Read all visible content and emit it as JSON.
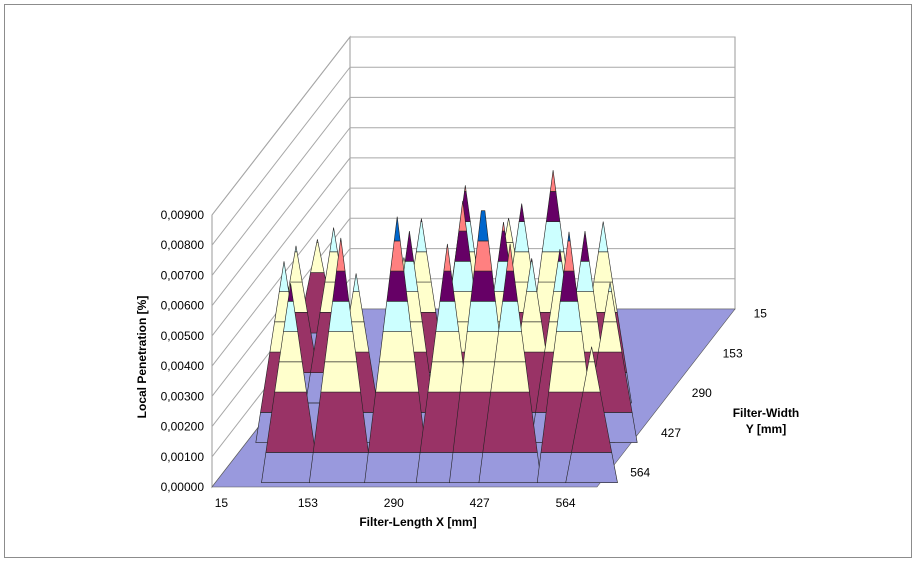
{
  "chart_data": {
    "type": "surface",
    "zlabel": "Local Penetration [%]",
    "xlabel": "Filter-Length X [mm]",
    "ylabel_line1": "Filter-Width",
    "ylabel_line2": "Y [mm]",
    "zlim": [
      0,
      0.009
    ],
    "z_ticks": [
      "0,00000",
      "0,00100",
      "0,00200",
      "0,00300",
      "0,00400",
      "0,00500",
      "0,00600",
      "0,00700",
      "0,00800",
      "0,00900"
    ],
    "x_ticks": [
      "15",
      "153",
      "290",
      "427",
      "564"
    ],
    "y_ticks": [
      "15",
      "153",
      "290",
      "427",
      "564"
    ],
    "color_bands": [
      {
        "range": [
          0.0,
          0.001
        ],
        "color": "#9999dd"
      },
      {
        "range": [
          0.001,
          0.003
        ],
        "color": "#993366"
      },
      {
        "range": [
          0.003,
          0.004
        ],
        "color": "#ffffcc"
      },
      {
        "range": [
          0.004,
          0.005
        ],
        "color": "#ffffcc"
      },
      {
        "range": [
          0.005,
          0.006
        ],
        "color": "#ccffff"
      },
      {
        "range": [
          0.006,
          0.007
        ],
        "color": "#660066"
      },
      {
        "range": [
          0.007,
          0.008
        ],
        "color": "#ff8080"
      },
      {
        "range": [
          0.008,
          0.009
        ],
        "color": "#0066cc"
      }
    ],
    "peaks": [
      {
        "x": 15,
        "y": 427,
        "z": 0.0041
      },
      {
        "x": 30,
        "y": 290,
        "z": 0.0052
      },
      {
        "x": 60,
        "y": 153,
        "z": 0.006
      },
      {
        "x": 90,
        "y": 290,
        "z": 0.0058
      },
      {
        "x": 120,
        "y": 15,
        "z": 0.0066
      },
      {
        "x": 153,
        "y": 427,
        "z": 0.0035
      },
      {
        "x": 175,
        "y": 153,
        "z": 0.0056
      },
      {
        "x": 200,
        "y": 15,
        "z": 0.0081
      },
      {
        "x": 230,
        "y": 290,
        "z": 0.0061
      },
      {
        "x": 260,
        "y": 153,
        "z": 0.007
      },
      {
        "x": 290,
        "y": 15,
        "z": 0.0088
      },
      {
        "x": 300,
        "y": 290,
        "z": 0.0072
      },
      {
        "x": 320,
        "y": 427,
        "z": 0.0048
      },
      {
        "x": 345,
        "y": 153,
        "z": 0.008
      },
      {
        "x": 370,
        "y": 15,
        "z": 0.0079
      },
      {
        "x": 390,
        "y": 290,
        "z": 0.0066
      },
      {
        "x": 410,
        "y": 153,
        "z": 0.0073
      },
      {
        "x": 427,
        "y": 15,
        "z": 0.0095
      },
      {
        "x": 440,
        "y": 290,
        "z": 0.0077
      },
      {
        "x": 455,
        "y": 153,
        "z": 0.0061
      },
      {
        "x": 470,
        "y": 15,
        "z": 0.0079
      },
      {
        "x": 500,
        "y": 153,
        "z": 0.0064
      },
      {
        "x": 520,
        "y": 290,
        "z": 0.006
      },
      {
        "x": 540,
        "y": 153,
        "z": 0.007
      },
      {
        "x": 564,
        "y": 15,
        "z": 0.0083
      },
      {
        "x": 580,
        "y": 153,
        "z": 0.0053
      },
      {
        "x": 600,
        "y": 15,
        "z": 0.0045
      }
    ]
  }
}
